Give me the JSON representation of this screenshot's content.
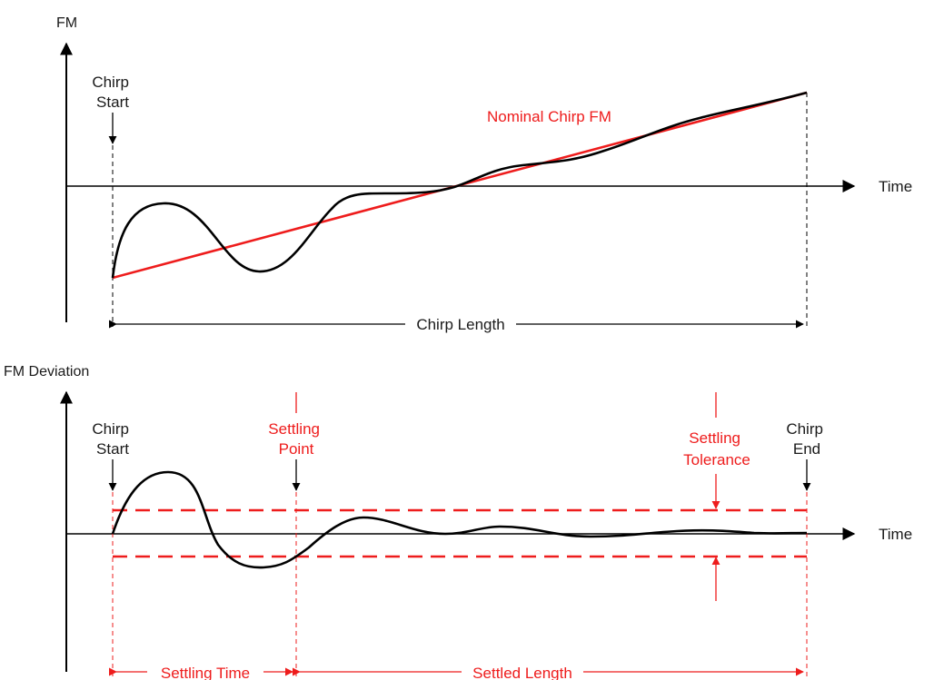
{
  "colors": {
    "ink": "#000000",
    "accent": "#ee1c1c",
    "background": "#ffffff"
  },
  "top": {
    "y_axis_title": "FM",
    "x_axis_title": "Time",
    "chirp_start": [
      "Chirp",
      "Start"
    ],
    "nominal_label": "Nominal Chirp FM",
    "length_label": "Chirp Length"
  },
  "bottom": {
    "y_axis_title": "FM Deviation",
    "x_axis_title": "Time",
    "chirp_start": [
      "Chirp",
      "Start"
    ],
    "chirp_end": [
      "Chirp",
      "End"
    ],
    "settling_point": [
      "Settling",
      "Point"
    ],
    "settling_tolerance": [
      "Settling",
      "Tolerance"
    ],
    "settling_time_label": "Settling Time",
    "settled_length_label": "Settled Length"
  }
}
